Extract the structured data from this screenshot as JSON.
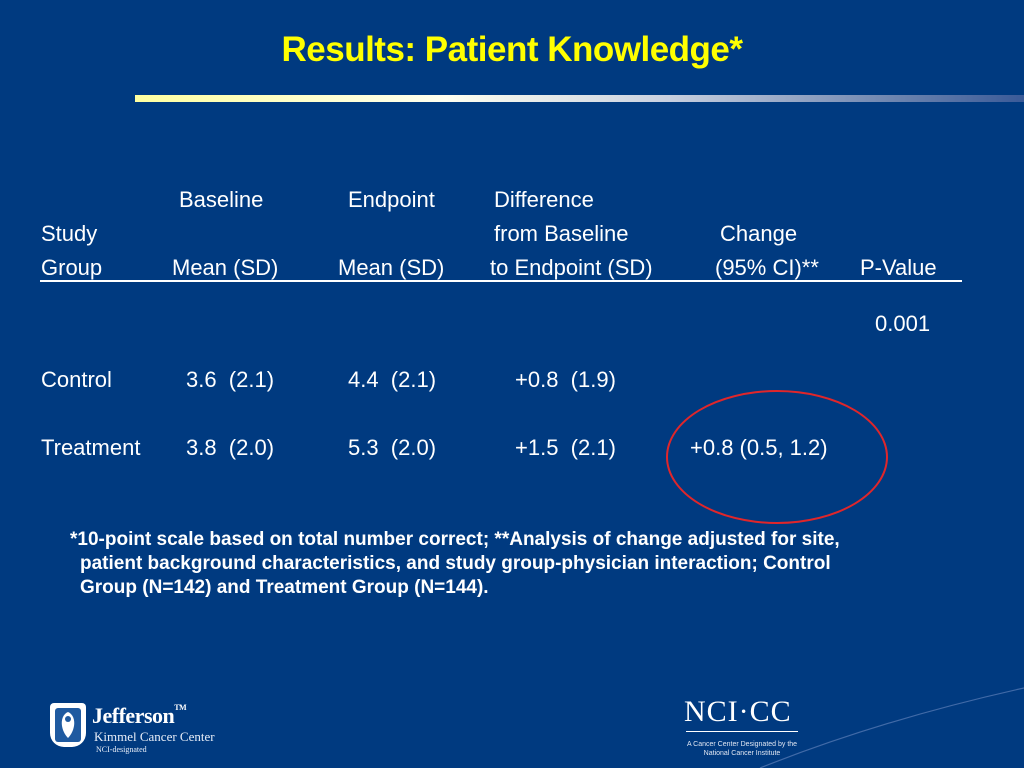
{
  "title": "Results: Patient Knowledge*",
  "table": {
    "header_row1": {
      "baseline": "Baseline",
      "endpoint": "Endpoint",
      "difference": "Difference"
    },
    "header_row2": {
      "study": "Study",
      "from_baseline": "from Baseline",
      "change": "Change"
    },
    "header_row3": {
      "group": "Group",
      "mean_sd_baseline": "Mean (SD)",
      "mean_sd_endpoint": "Mean (SD)",
      "to_endpoint": "to Endpoint (SD)",
      "ci": "(95% CI)**",
      "pvalue": "P-Value"
    },
    "pvalue": "0.001",
    "rows": [
      {
        "group": "Control",
        "baseline": "3.6  (2.1)",
        "endpoint": "4.4  (2.1)",
        "difference": "+0.8  (1.9)",
        "change": ""
      },
      {
        "group": "Treatment",
        "baseline": "3.8  (2.0)",
        "endpoint": "5.3  (2.0)",
        "difference": "+1.5  (2.1)",
        "change": "+0.8 (0.5, 1.2)"
      }
    ]
  },
  "footnote": {
    "line1": "*10-point scale based on total number correct; **Analysis of change adjusted for site,",
    "line2": "patient background characteristics, and study group-physician interaction; Control",
    "line3": "Group (N=142) and Treatment Group (N=144)."
  },
  "logos": {
    "jefferson": {
      "name": "Jefferson",
      "tm": "TM",
      "subtitle": "Kimmel Cancer Center",
      "designation": "NCI-designated"
    },
    "nci": {
      "name": "NCI·CC",
      "line1": "A Cancer Center Designated by the",
      "line2": "National Cancer Institute"
    }
  },
  "colors": {
    "background": "#003a80",
    "title": "#ffff00",
    "highlight_circle": "#e0262a"
  }
}
